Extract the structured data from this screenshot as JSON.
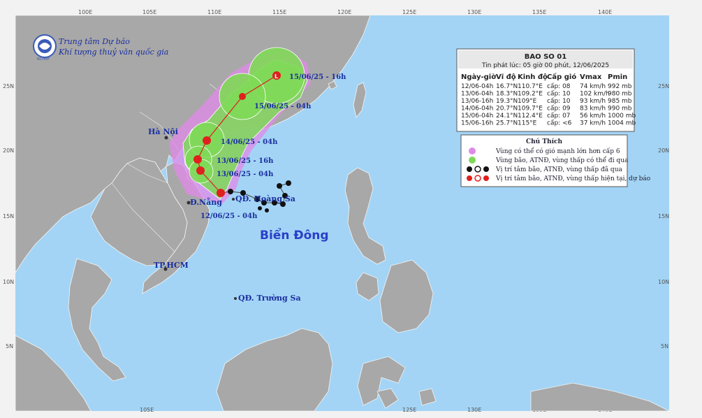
{
  "agency": {
    "name_line1": "Trung tâm Dự báo",
    "name_line2": "Khí tượng thuỷ văn quốc gia",
    "logo_text": "NCHMF"
  },
  "axes": {
    "lon_ticks": [
      "100E",
      "105E",
      "110E",
      "115E",
      "120E",
      "125E",
      "130E",
      "135E",
      "140E"
    ],
    "lat_ticks": [
      "25N",
      "20N",
      "15N",
      "10N",
      "5N"
    ],
    "lon_ticks_bottom": [
      "105E",
      "125E",
      "130E",
      "135E",
      "140E"
    ]
  },
  "places": {
    "hanoi": "Hà Nội",
    "danang": "Đ.Nẵng",
    "tphcm": "TP.HCM",
    "hoangsa": "QĐ. Hoàng Sa",
    "truongsa": "QĐ. Trường Sa",
    "sea": "Biển Đông"
  },
  "track_labels": {
    "t1": "12/06/25 - 04h",
    "t2": "13/06/25 - 04h",
    "t3": "13/06/25 - 16h",
    "t4": "14/06/25 - 04h",
    "t5": "15/06/25 - 04h",
    "t6": "15/06/25 - 16h"
  },
  "bulletin": {
    "title": "BAO SO 01",
    "issued": "Tin phát lúc: 05 giờ 00 phút, 12/06/2025",
    "columns": [
      "Ngày-giờ",
      "Vĩ độ",
      "Kinh độ",
      "Cấp gió",
      "Vmax",
      "Pmin"
    ],
    "rows": [
      [
        "12/06-04h",
        "16.7°N",
        "110.7°E",
        "cấp: 08",
        "74 km/h",
        "992 mb"
      ],
      [
        "13/06-04h",
        "18.3°N",
        "109.2°E",
        "cấp: 10",
        "102 km/h",
        "980 mb"
      ],
      [
        "13/06-16h",
        "19.3°N",
        "109°E",
        "cấp: 10",
        "93 km/h",
        "985 mb"
      ],
      [
        "14/06-04h",
        "20.7°N",
        "109.7°E",
        "cấp: 09",
        "83 km/h",
        "990 mb"
      ],
      [
        "15/06-04h",
        "24.1°N",
        "112.4°E",
        "cấp: 07",
        "56 km/h",
        "1000 mb"
      ],
      [
        "15/06-16h",
        "25.7°N",
        "115°E",
        "cấp: <6",
        "37 km/h",
        "1004 mb"
      ]
    ]
  },
  "legend": {
    "title": "Chú Thích",
    "items": [
      {
        "text": "Vùng có thể có gió mạnh lớn hơn cấp 6",
        "color": "#e08ae8"
      },
      {
        "text": "Vùng bão, ATNĐ, vùng thấp có thể đi qua",
        "color": "#7ed957"
      },
      {
        "text": "Vị trí tâm bão, ATNĐ, vùng thấp đã qua",
        "color": "#111111"
      },
      {
        "text": "Vị trí tâm bão, ATNĐ, vùng thấp hiện tại, dự báo",
        "color": "#e0201e"
      }
    ]
  },
  "colors": {
    "sea": "#a3d4f5",
    "land": "#a8a8a8",
    "strong_wind_zone": "#e08ae8",
    "storm_zone": "#7ed957",
    "forecast_marker": "#e0201e",
    "past_marker": "#111111"
  }
}
